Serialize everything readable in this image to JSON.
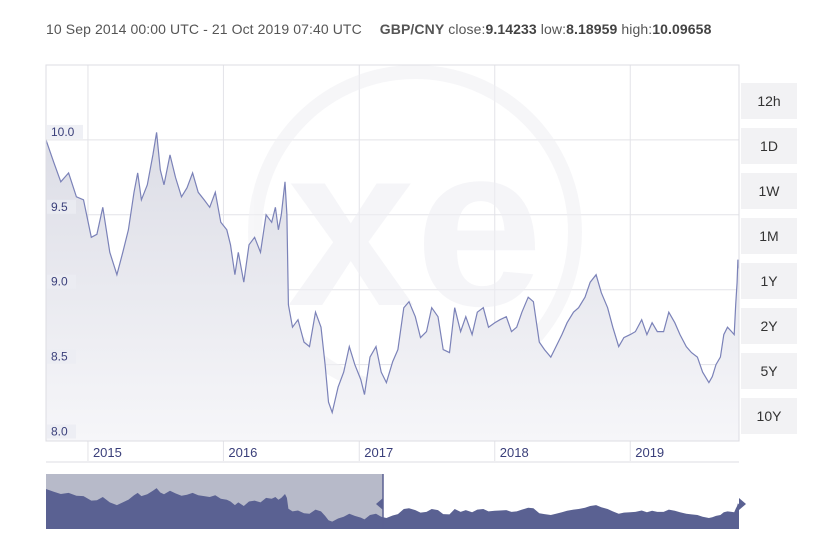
{
  "header": {
    "range_text": "10 Sep 2014 00:00 UTC - 21 Oct 2019 07:40 UTC",
    "pair": "GBP/CNY",
    "close_label": "close:",
    "close_value": "9.14233",
    "low_label": "low:",
    "low_value": "8.18959",
    "high_label": "high:",
    "high_value": "10.09658"
  },
  "range_buttons": [
    "12h",
    "1D",
    "1W",
    "1M",
    "1Y",
    "2Y",
    "5Y",
    "10Y"
  ],
  "colors": {
    "line": "#7b82b8",
    "fill_top": "#dcdde6",
    "fill_bottom": "#f6f6f9",
    "grid": "#e3e3e8",
    "navigator_unselected": "#b7bac9",
    "navigator_selected": "#5a6192",
    "tick_text": "#3a3f7a"
  },
  "watermark": "xe",
  "chart_data": {
    "type": "line",
    "series": [
      {
        "values": [
          [
            "2014-09-10",
            10.0
          ],
          [
            "2014-10-01",
            9.85
          ],
          [
            "2014-10-20",
            9.72
          ],
          [
            "2014-11-10",
            9.78
          ],
          [
            "2014-12-01",
            9.62
          ],
          [
            "2014-12-20",
            9.6
          ],
          [
            "2015-01-10",
            9.35
          ],
          [
            "2015-01-25",
            9.37
          ],
          [
            "2015-02-10",
            9.55
          ],
          [
            "2015-03-01",
            9.25
          ],
          [
            "2015-03-20",
            9.1
          ],
          [
            "2015-04-05",
            9.25
          ],
          [
            "2015-04-20",
            9.4
          ],
          [
            "2015-05-05",
            9.65
          ],
          [
            "2015-05-15",
            9.78
          ],
          [
            "2015-05-25",
            9.6
          ],
          [
            "2015-06-10",
            9.7
          ],
          [
            "2015-06-25",
            9.9
          ],
          [
            "2015-07-05",
            10.05
          ],
          [
            "2015-07-15",
            9.8
          ],
          [
            "2015-07-25",
            9.7
          ],
          [
            "2015-08-10",
            9.9
          ],
          [
            "2015-08-25",
            9.75
          ],
          [
            "2015-09-10",
            9.62
          ],
          [
            "2015-09-25",
            9.68
          ],
          [
            "2015-10-10",
            9.78
          ],
          [
            "2015-10-25",
            9.65
          ],
          [
            "2015-11-10",
            9.6
          ],
          [
            "2015-11-25",
            9.55
          ],
          [
            "2015-12-10",
            9.65
          ],
          [
            "2015-12-25",
            9.45
          ],
          [
            "2016-01-10",
            9.4
          ],
          [
            "2016-01-20",
            9.3
          ],
          [
            "2016-02-01",
            9.1
          ],
          [
            "2016-02-10",
            9.25
          ],
          [
            "2016-02-25",
            9.05
          ],
          [
            "2016-03-10",
            9.3
          ],
          [
            "2016-03-25",
            9.35
          ],
          [
            "2016-04-10",
            9.25
          ],
          [
            "2016-04-25",
            9.5
          ],
          [
            "2016-05-10",
            9.45
          ],
          [
            "2016-05-20",
            9.55
          ],
          [
            "2016-05-28",
            9.4
          ],
          [
            "2016-06-05",
            9.5
          ],
          [
            "2016-06-15",
            9.72
          ],
          [
            "2016-06-20",
            9.5
          ],
          [
            "2016-06-24",
            8.9
          ],
          [
            "2016-07-05",
            8.75
          ],
          [
            "2016-07-20",
            8.8
          ],
          [
            "2016-08-05",
            8.65
          ],
          [
            "2016-08-20",
            8.62
          ],
          [
            "2016-09-05",
            8.85
          ],
          [
            "2016-09-20",
            8.75
          ],
          [
            "2016-10-01",
            8.5
          ],
          [
            "2016-10-10",
            8.25
          ],
          [
            "2016-10-20",
            8.18
          ],
          [
            "2016-11-05",
            8.35
          ],
          [
            "2016-11-20",
            8.45
          ],
          [
            "2016-12-05",
            8.62
          ],
          [
            "2016-12-20",
            8.5
          ],
          [
            "2017-01-05",
            8.4
          ],
          [
            "2017-01-15",
            8.3
          ],
          [
            "2017-01-30",
            8.55
          ],
          [
            "2017-02-15",
            8.62
          ],
          [
            "2017-03-01",
            8.45
          ],
          [
            "2017-03-15",
            8.38
          ],
          [
            "2017-04-01",
            8.52
          ],
          [
            "2017-04-15",
            8.6
          ],
          [
            "2017-05-01",
            8.88
          ],
          [
            "2017-05-15",
            8.92
          ],
          [
            "2017-06-01",
            8.82
          ],
          [
            "2017-06-15",
            8.68
          ],
          [
            "2017-07-01",
            8.72
          ],
          [
            "2017-07-15",
            8.88
          ],
          [
            "2017-08-01",
            8.82
          ],
          [
            "2017-08-15",
            8.6
          ],
          [
            "2017-09-01",
            8.58
          ],
          [
            "2017-09-15",
            8.88
          ],
          [
            "2017-10-01",
            8.72
          ],
          [
            "2017-10-15",
            8.82
          ],
          [
            "2017-11-01",
            8.7
          ],
          [
            "2017-11-15",
            8.85
          ],
          [
            "2017-12-01",
            8.88
          ],
          [
            "2017-12-15",
            8.75
          ],
          [
            "2018-01-01",
            8.78
          ],
          [
            "2018-01-15",
            8.8
          ],
          [
            "2018-02-01",
            8.82
          ],
          [
            "2018-02-15",
            8.72
          ],
          [
            "2018-03-01",
            8.75
          ],
          [
            "2018-03-15",
            8.85
          ],
          [
            "2018-04-01",
            8.95
          ],
          [
            "2018-04-15",
            8.92
          ],
          [
            "2018-05-01",
            8.65
          ],
          [
            "2018-05-15",
            8.6
          ],
          [
            "2018-06-01",
            8.55
          ],
          [
            "2018-06-15",
            8.62
          ],
          [
            "2018-07-01",
            8.7
          ],
          [
            "2018-07-15",
            8.78
          ],
          [
            "2018-08-01",
            8.85
          ],
          [
            "2018-08-15",
            8.88
          ],
          [
            "2018-09-01",
            8.95
          ],
          [
            "2018-09-15",
            9.05
          ],
          [
            "2018-10-01",
            9.1
          ],
          [
            "2018-10-15",
            8.98
          ],
          [
            "2018-11-01",
            8.88
          ],
          [
            "2018-11-15",
            8.75
          ],
          [
            "2018-12-01",
            8.62
          ],
          [
            "2018-12-15",
            8.68
          ],
          [
            "2019-01-01",
            8.7
          ],
          [
            "2019-01-15",
            8.72
          ],
          [
            "2019-02-01",
            8.8
          ],
          [
            "2019-02-15",
            8.7
          ],
          [
            "2019-03-01",
            8.78
          ],
          [
            "2019-03-15",
            8.72
          ],
          [
            "2019-04-01",
            8.72
          ],
          [
            "2019-04-15",
            8.85
          ],
          [
            "2019-05-01",
            8.78
          ],
          [
            "2019-05-15",
            8.7
          ],
          [
            "2019-06-01",
            8.62
          ],
          [
            "2019-06-15",
            8.58
          ],
          [
            "2019-07-01",
            8.55
          ],
          [
            "2019-07-15",
            8.45
          ],
          [
            "2019-08-01",
            8.38
          ],
          [
            "2019-08-10",
            8.42
          ],
          [
            "2019-08-20",
            8.5
          ],
          [
            "2019-09-01",
            8.55
          ],
          [
            "2019-09-10",
            8.7
          ],
          [
            "2019-09-20",
            8.75
          ],
          [
            "2019-10-01",
            8.72
          ],
          [
            "2019-10-08",
            8.7
          ],
          [
            "2019-10-12",
            8.9
          ],
          [
            "2019-10-16",
            9.05
          ],
          [
            "2019-10-18",
            9.2
          ],
          [
            "2019-10-21",
            9.14
          ]
        ]
      }
    ],
    "y_ticks": [
      "8.0",
      "8.5",
      "9.0",
      "9.5",
      "10.0"
    ],
    "x_ticks": [
      "2015",
      "2016",
      "2017",
      "2018",
      "2019"
    ],
    "ylim": [
      7.99,
      10.5
    ],
    "xlim": [
      "2014-09-10",
      "2019-10-21"
    ],
    "grid": true,
    "navigator": {
      "selected_range": [
        "2014-09-10",
        "2019-10-21"
      ]
    }
  }
}
